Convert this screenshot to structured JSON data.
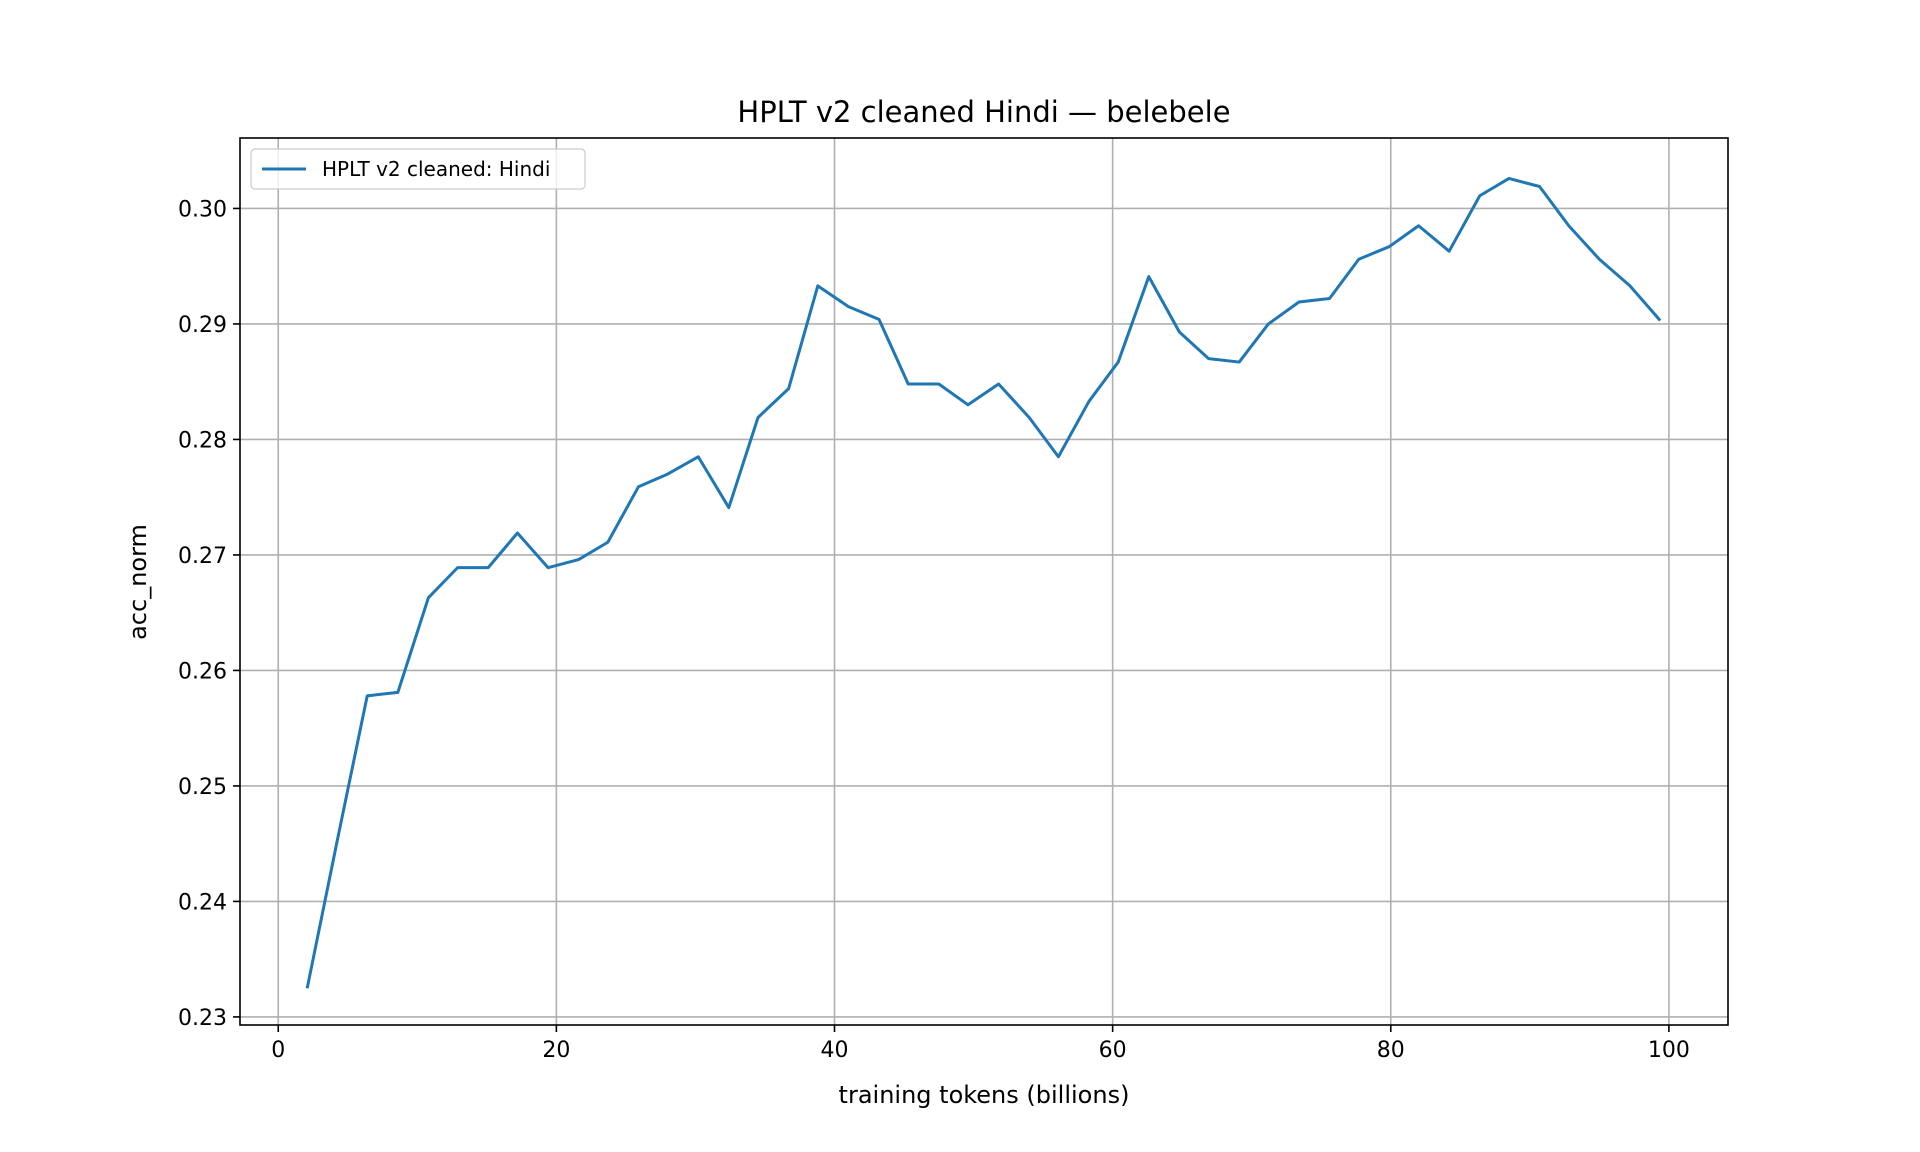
{
  "chart_data": {
    "type": "line",
    "title": "HPLT v2 cleaned Hindi — belebele",
    "xlabel": "training tokens (billions)",
    "ylabel": "acc_norm",
    "xlim": [
      -2.75,
      104.25
    ],
    "ylim": [
      0.2293,
      0.3061
    ],
    "xticks": [
      0,
      20,
      40,
      60,
      80,
      100
    ],
    "xtick_labels": [
      "0",
      "20",
      "40",
      "60",
      "80",
      "100"
    ],
    "yticks": [
      0.23,
      0.24,
      0.25,
      0.26,
      0.27,
      0.28,
      0.29,
      0.3
    ],
    "ytick_labels": [
      "0.23",
      "0.24",
      "0.25",
      "0.26",
      "0.27",
      "0.28",
      "0.29",
      "0.30"
    ],
    "grid": true,
    "legend_position": "top-left",
    "series": [
      {
        "name": "HPLT v2 cleaned: Hindi",
        "color": "#1f77b4",
        "x": [
          2.1,
          4.3,
          6.4,
          8.6,
          10.8,
          12.9,
          15.1,
          17.2,
          19.4,
          21.6,
          23.7,
          25.9,
          28.0,
          30.2,
          32.4,
          34.5,
          36.7,
          38.8,
          41.0,
          43.2,
          45.3,
          47.5,
          49.6,
          51.8,
          54.0,
          56.1,
          58.3,
          60.4,
          62.6,
          64.8,
          66.9,
          69.1,
          71.2,
          73.4,
          75.6,
          77.7,
          79.9,
          82.0,
          84.2,
          86.4,
          88.5,
          90.7,
          92.8,
          95.0,
          97.2,
          99.3
        ],
        "y": [
          0.2326,
          0.2456,
          0.2578,
          0.2581,
          0.2663,
          0.2689,
          0.2689,
          0.2719,
          0.2689,
          0.2696,
          0.2711,
          0.2759,
          0.277,
          0.2785,
          0.2741,
          0.2819,
          0.2844,
          0.2933,
          0.2915,
          0.2904,
          0.2848,
          0.2848,
          0.283,
          0.2848,
          0.2819,
          0.2785,
          0.2833,
          0.2867,
          0.2941,
          0.2893,
          0.287,
          0.2867,
          0.29,
          0.2919,
          0.2922,
          0.2956,
          0.2967,
          0.2985,
          0.2963,
          0.3011,
          0.3026,
          0.3019,
          0.2985,
          0.2956,
          0.2933,
          0.2904
        ]
      }
    ]
  }
}
